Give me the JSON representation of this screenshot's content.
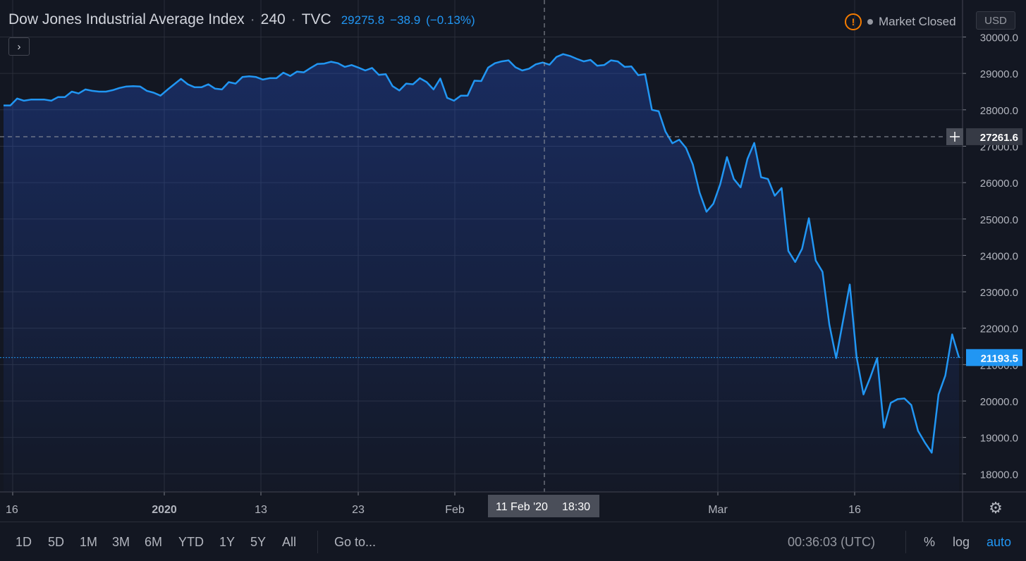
{
  "legend": {
    "symbol": "Dow Jones Industrial Average Index",
    "interval": "240",
    "exchange": "TVC",
    "last": "29275.8",
    "change": "−38.9",
    "change_pct": "(−0.13%)"
  },
  "status": {
    "market": "Market Closed",
    "currency": "USD"
  },
  "crosshair": {
    "price_label": "27261.6",
    "date_label": "11 Feb '20",
    "time_label": "18:30"
  },
  "last_price_label": "21193.5",
  "bottom_bar": {
    "ranges": [
      "1D",
      "5D",
      "1M",
      "3M",
      "6M",
      "YTD",
      "1Y",
      "5Y",
      "All"
    ],
    "goto": "Go to...",
    "clock": "00:36:03 (UTC)",
    "pct": "%",
    "log": "log",
    "auto": "auto"
  },
  "colors": {
    "background": "#131722",
    "line": "#2196f3",
    "grid": "#2a2e39",
    "text": "#d1d4dc",
    "warning": "#f57c00"
  },
  "chart_data": {
    "type": "area",
    "x_tick_labels": [
      "16",
      "2020",
      "13",
      "23",
      "Feb",
      "Mar",
      "16"
    ],
    "y_tick_labels": [
      "30000.0",
      "29000.0",
      "28000.0",
      "27000.0",
      "26000.0",
      "25000.0",
      "24000.0",
      "23000.0",
      "22000.0",
      "21000.0",
      "20000.0",
      "19000.0",
      "18000.0"
    ],
    "ylim": [
      17500,
      30500
    ],
    "grid": true,
    "crosshair_price": 27261.6,
    "last_price": 21193.5,
    "series": [
      {
        "values": [
          28120,
          28120,
          28310,
          28250,
          28280,
          28280,
          28280,
          28250,
          28350,
          28350,
          28500,
          28450,
          28560,
          28520,
          28500,
          28500,
          28540,
          28600,
          28640,
          28650,
          28640,
          28520,
          28470,
          28390,
          28550,
          28700,
          28850,
          28700,
          28620,
          28620,
          28700,
          28580,
          28560,
          28760,
          28720,
          28900,
          28920,
          28900,
          28830,
          28870,
          28870,
          29020,
          28930,
          29050,
          29030,
          29150,
          29260,
          29270,
          29320,
          29280,
          29180,
          29230,
          29160,
          29080,
          29150,
          28960,
          28980,
          28650,
          28530,
          28720,
          28700,
          28870,
          28760,
          28560,
          28860,
          28330,
          28250,
          28390,
          28390,
          28800,
          28790,
          29160,
          29280,
          29330,
          29360,
          29170,
          29080,
          29130,
          29250,
          29300,
          29240,
          29450,
          29530,
          29480,
          29400,
          29330,
          29370,
          29210,
          29230,
          29360,
          29330,
          29180,
          29190,
          28950,
          28980,
          28000,
          27960,
          27400,
          27080,
          27180,
          26950,
          26500,
          25720,
          25200,
          25420,
          25950,
          26700,
          26100,
          25870,
          26650,
          27090,
          26150,
          26100,
          25640,
          25850,
          24120,
          23820,
          24180,
          25020,
          23860,
          23550,
          22100,
          21180,
          22200,
          23200,
          21200,
          20180,
          20650,
          21180,
          19270,
          19950,
          20050,
          20070,
          19890,
          19180,
          18860,
          18580,
          20180,
          20700,
          21830,
          21190
        ]
      }
    ]
  }
}
